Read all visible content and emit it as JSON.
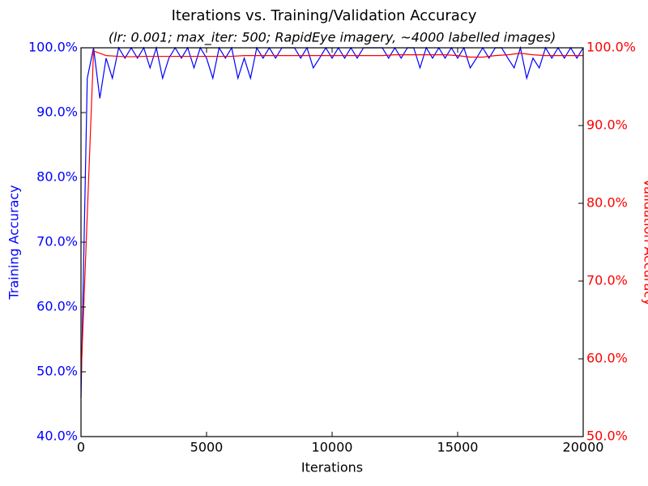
{
  "chart_data": {
    "type": "line",
    "title": "Iterations vs. Training/Validation Accuracy",
    "subtitle": "(lr: 0.001; max_iter: 500; RapidEye imagery, ~4000 labelled images)",
    "xlabel": "Iterations",
    "ylabel": "Training Accuracy",
    "y2label": "Validation Accuracy",
    "xlim": [
      0,
      20000
    ],
    "xticks": [
      0,
      5000,
      10000,
      15000,
      20000
    ],
    "ylim": [
      40,
      100
    ],
    "yticks": [
      {
        "value": 40,
        "label": "40.0%"
      },
      {
        "value": 50,
        "label": "50.0%"
      },
      {
        "value": 60,
        "label": "60.0%"
      },
      {
        "value": 70,
        "label": "70.0%"
      },
      {
        "value": 80,
        "label": "80.0%"
      },
      {
        "value": 90,
        "label": "90.0%"
      },
      {
        "value": 100,
        "label": "100.0%"
      }
    ],
    "y2lim": [
      50,
      100
    ],
    "y2ticks": [
      {
        "value": 50,
        "label": "50.0%"
      },
      {
        "value": 60,
        "label": "60.0%"
      },
      {
        "value": 70,
        "label": "70.0%"
      },
      {
        "value": 80,
        "label": "80.0%"
      },
      {
        "value": 90,
        "label": "90.0%"
      },
      {
        "value": 100,
        "label": "100.0%"
      }
    ],
    "ycolor": "#0000ff",
    "y2color": "#ff0000",
    "series": [
      {
        "name": "Training Accuracy",
        "color": "#0000ff",
        "x": [
          0,
          250,
          500,
          750,
          1000,
          1250,
          1500,
          1750,
          2000,
          2250,
          2500,
          2750,
          3000,
          3250,
          3500,
          3750,
          4000,
          4250,
          4500,
          4750,
          5000,
          5250,
          5500,
          5750,
          6000,
          6250,
          6500,
          6750,
          7000,
          7250,
          7500,
          7750,
          8000,
          8250,
          8500,
          8750,
          9000,
          9250,
          9500,
          9750,
          10000,
          10250,
          10500,
          10750,
          11000,
          11250,
          11500,
          11750,
          12000,
          12250,
          12500,
          12750,
          13000,
          13250,
          13500,
          13750,
          14000,
          14250,
          14500,
          14750,
          15000,
          15250,
          15500,
          15750,
          16000,
          16250,
          16500,
          16750,
          17000,
          17250,
          17500,
          17750,
          18000,
          18250,
          18500,
          18750,
          19000,
          19250,
          19500,
          19750,
          20000
        ],
        "values": [
          46,
          95.3,
          100,
          92.2,
          98.4,
          95.3,
          100,
          98.4,
          100,
          98.4,
          100,
          96.9,
          100,
          95.3,
          98.4,
          100,
          98.4,
          100,
          96.9,
          100,
          98.4,
          95.3,
          100,
          98.4,
          100,
          95.3,
          98.4,
          95.3,
          100,
          98.4,
          100,
          98.4,
          100,
          100,
          100,
          98.4,
          100,
          96.9,
          98.4,
          100,
          98.4,
          100,
          98.4,
          100,
          98.4,
          100,
          100,
          100,
          100,
          98.4,
          100,
          98.4,
          100,
          100,
          96.9,
          100,
          98.4,
          100,
          98.4,
          100,
          98.4,
          100,
          96.9,
          98.4,
          100,
          98.4,
          100,
          100,
          98.4,
          96.9,
          100,
          95.3,
          98.4,
          96.9,
          100,
          98.4,
          100,
          98.4,
          100,
          98.4,
          100
        ]
      },
      {
        "name": "Validation Accuracy",
        "color": "#ff0000",
        "axis": "y2",
        "x": [
          0,
          500,
          1000,
          1500,
          2000,
          2500,
          3000,
          3500,
          4000,
          4500,
          5000,
          5500,
          6000,
          6500,
          7000,
          7500,
          8000,
          8500,
          9000,
          9500,
          10000,
          10500,
          11000,
          11500,
          12000,
          12500,
          13000,
          13500,
          14000,
          14500,
          15000,
          15500,
          16000,
          16500,
          17000,
          17500,
          18000,
          18500,
          19000,
          19500,
          20000
        ],
        "values": [
          57.5,
          99.6,
          99.0,
          98.9,
          98.85,
          98.9,
          98.9,
          98.9,
          98.9,
          98.9,
          98.9,
          98.9,
          98.9,
          99.0,
          99.0,
          99.0,
          99.0,
          99.0,
          99.0,
          99.0,
          99.0,
          99.0,
          99.0,
          99.0,
          99.0,
          99.1,
          99.1,
          99.1,
          99.1,
          99.1,
          99.0,
          98.8,
          98.8,
          99.0,
          99.1,
          99.3,
          99.1,
          99.0,
          99.0,
          99.0,
          99.0
        ]
      }
    ]
  }
}
